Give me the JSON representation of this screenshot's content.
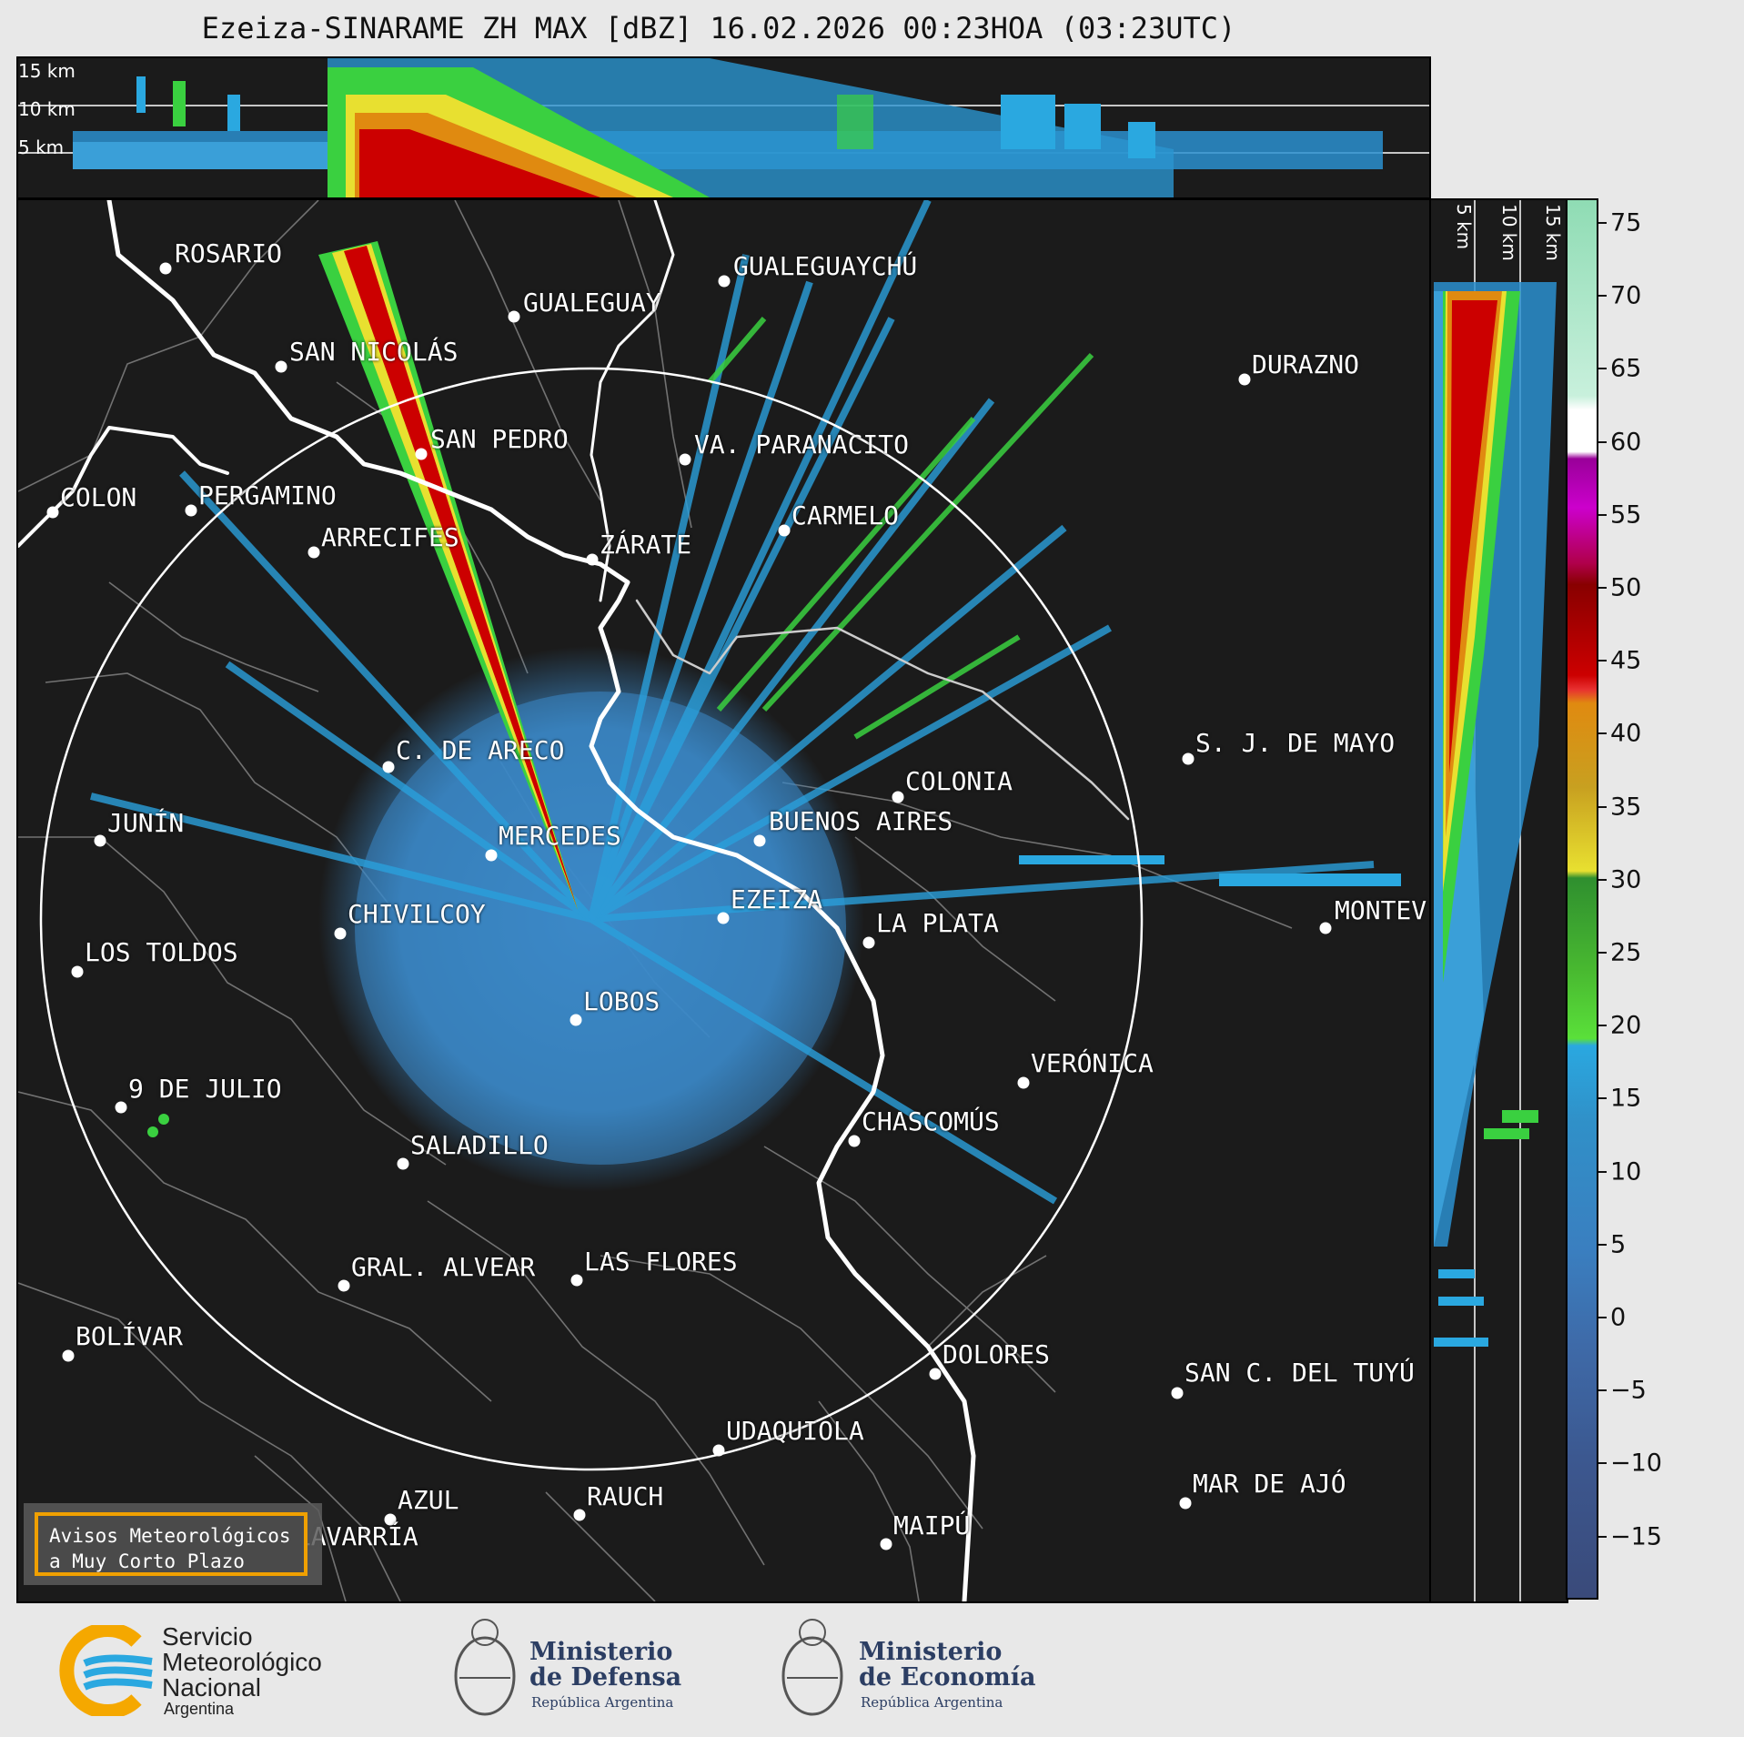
{
  "title": "Ezeiza-SINARAME ZH MAX [dBZ] 16.02.2026 00:23HOA (03:23UTC)",
  "top_panel": {
    "altitude_labels": [
      "15 km",
      "10 km",
      "5 km"
    ]
  },
  "right_panel": {
    "altitude_labels": [
      "5 km",
      "10 km",
      "15 km"
    ]
  },
  "map": {
    "cities": [
      {
        "name": "ROSARIO"
      },
      {
        "name": "GUALEGUAYCHÚ"
      },
      {
        "name": "GUALEGUAY"
      },
      {
        "name": "SAN NICOLÁS"
      },
      {
        "name": "DURAZNO"
      },
      {
        "name": "SAN PEDRO"
      },
      {
        "name": "VA. PARANACITO"
      },
      {
        "name": "COLON"
      },
      {
        "name": "PERGAMINO"
      },
      {
        "name": "CARMELO"
      },
      {
        "name": "ARRECIFES"
      },
      {
        "name": "ZÁRATE"
      },
      {
        "name": "S. J. DE MAYO"
      },
      {
        "name": "C. DE ARECO"
      },
      {
        "name": "COLONIA"
      },
      {
        "name": "BUENOS AIRES"
      },
      {
        "name": "JUNÍN"
      },
      {
        "name": "MERCEDES"
      },
      {
        "name": "MONTEV"
      },
      {
        "name": "EZEIZA"
      },
      {
        "name": "CHIVILCOY"
      },
      {
        "name": "LA PLATA"
      },
      {
        "name": "LOS TOLDOS"
      },
      {
        "name": "LOBOS"
      },
      {
        "name": "VERÓNICA"
      },
      {
        "name": "9 DE JULIO"
      },
      {
        "name": "CHASCOMÚS"
      },
      {
        "name": "SALADILLO"
      },
      {
        "name": "GRAL. ALVEAR"
      },
      {
        "name": "LAS FLORES"
      },
      {
        "name": "BOLÍVAR"
      },
      {
        "name": "DOLORES"
      },
      {
        "name": "SAN C. DEL TUYÚ"
      },
      {
        "name": "UDAQUIOLA"
      },
      {
        "name": "MAR DE AJÓ"
      },
      {
        "name": "AZUL"
      },
      {
        "name": "RAUCH"
      },
      {
        "name": "OLAVARRÍA"
      },
      {
        "name": "MAIPÚ"
      }
    ],
    "warning_box": {
      "line1": "Avisos Meteorológicos",
      "line2": "a Muy Corto Plazo"
    }
  },
  "colorbar": {
    "unit": "dBZ",
    "tick_labels": [
      "75",
      "70",
      "65",
      "60",
      "55",
      "50",
      "45",
      "40",
      "35",
      "30",
      "25",
      "20",
      "15",
      "10",
      "5",
      "0",
      "−5",
      "−10",
      "−15"
    ],
    "colors": {
      "high": "#8fdcb4",
      "white": "#ffffff",
      "magenta": "#cc00cc",
      "red": "#cc0000",
      "orange": "#e08a10",
      "yellow": "#e8e030",
      "green": "#2f8f2f",
      "lightgreen": "#5ae03a",
      "cyan": "#2aa8e0",
      "blue": "#3a7fc0",
      "navy": "#3a4a7a"
    }
  },
  "footer": {
    "smn": {
      "line1": "Servicio",
      "line2": "Meteorológico",
      "line3": "Nacional",
      "line4": "Argentina"
    },
    "defensa": {
      "line1": "Ministerio",
      "line2": "de Defensa",
      "line3": "República Argentina"
    },
    "economia": {
      "line1": "Ministerio",
      "line2": "de Economía",
      "line3": "República Argentina"
    }
  }
}
